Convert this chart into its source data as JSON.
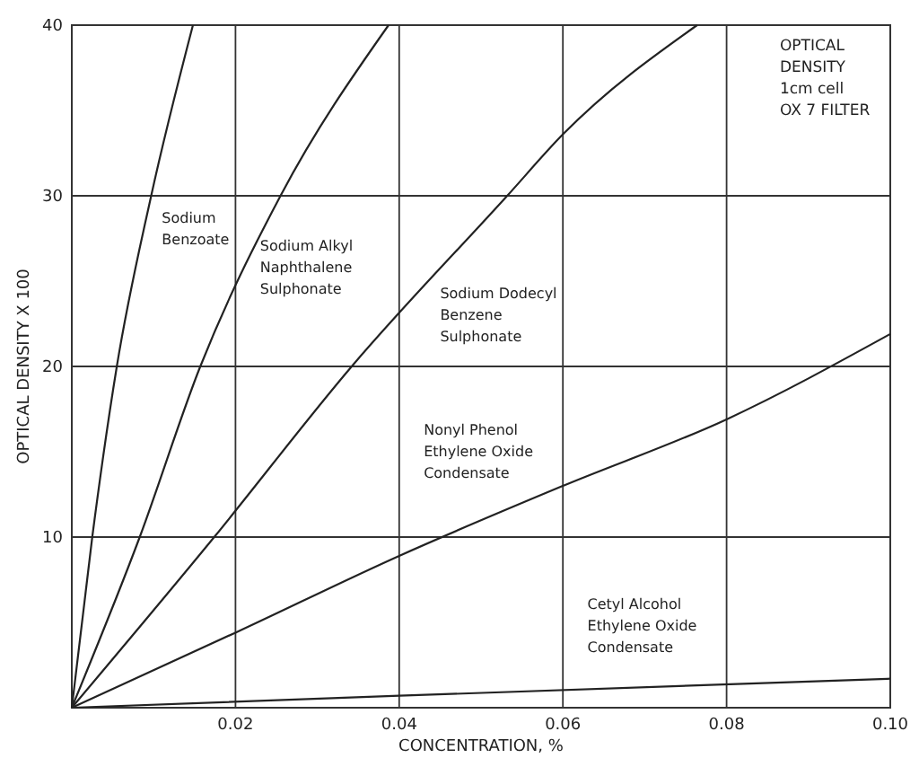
{
  "chart_data": {
    "type": "line",
    "xlabel": "CONCENTRATION, %",
    "ylabel": "OPTICAL DENSITY X 100",
    "xlim": [
      0,
      0.1
    ],
    "ylim": [
      0,
      40
    ],
    "xticks": [
      {
        "value": 0.02,
        "label": "0.02"
      },
      {
        "value": 0.04,
        "label": "0.04"
      },
      {
        "value": 0.06,
        "label": "0.06"
      },
      {
        "value": 0.08,
        "label": "0.08"
      },
      {
        "value": 0.1,
        "label": "0.10"
      }
    ],
    "yticks": [
      10,
      20,
      30,
      40
    ],
    "grid": true,
    "marker": "none",
    "line_style": "solid",
    "annotations": [
      "OPTICAL",
      "DENSITY",
      "1cm cell",
      "OX 7 FILTER"
    ],
    "series": [
      {
        "name": "Sodium Benzoate",
        "color": "#222222",
        "x": [
          0,
          0.0025,
          0.0055,
          0.0097,
          0.0148
        ],
        "values": [
          0,
          10,
          20,
          30,
          40
        ]
      },
      {
        "name": "Sodium Alkyl Naphthalene Sulphonate",
        "color": "#222222",
        "x": [
          0,
          0.0083,
          0.0157,
          0.0255,
          0.0387
        ],
        "values": [
          0,
          10,
          20,
          30,
          40
        ]
      },
      {
        "name": "Sodium Dodecyl Benzene Sulphonate",
        "color": "#222222",
        "x": [
          0,
          0.0174,
          0.0342,
          0.0532,
          0.06,
          0.0764
        ],
        "values": [
          0,
          10,
          20,
          30,
          33.6,
          40
        ]
      },
      {
        "name": "Nonyl Phenol Ethylene Oxide Condensate",
        "color": "#222222",
        "x": [
          0,
          0.02,
          0.04,
          0.06,
          0.08,
          0.1
        ],
        "values": [
          0,
          4.4,
          8.9,
          13,
          16.9,
          21.9
        ]
      },
      {
        "name": "Cetyl Alcohol Ethylene Oxide Condensate",
        "color": "#222222",
        "x": [
          0,
          0.04,
          0.1
        ],
        "values": [
          0,
          0.7,
          1.7
        ]
      }
    ]
  }
}
